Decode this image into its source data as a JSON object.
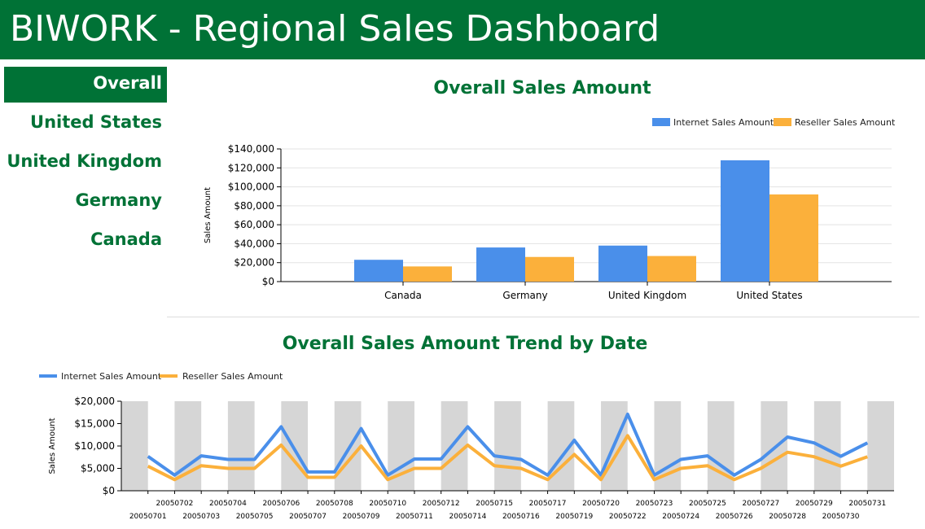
{
  "header": {
    "title": "BIWORK - Regional Sales Dashboard"
  },
  "sidebar": {
    "items": [
      {
        "label": "Overall",
        "active": true
      },
      {
        "label": "United States",
        "active": false
      },
      {
        "label": "United Kingdom",
        "active": false
      },
      {
        "label": "Germany",
        "active": false
      },
      {
        "label": "Canada",
        "active": false
      }
    ]
  },
  "colors": {
    "brand": "#007236",
    "internet": "#4a8fea",
    "reseller": "#fbb03b"
  },
  "chart_data": [
    {
      "type": "bar",
      "title": "Overall Sales Amount",
      "ylabel": "Sales Amount",
      "xlabel": "",
      "categories": [
        "Canada",
        "Germany",
        "United Kingdom",
        "United States"
      ],
      "series": [
        {
          "name": "Internet Sales Amount",
          "values": [
            23000,
            36000,
            38000,
            128000
          ]
        },
        {
          "name": "Reseller Sales Amount",
          "values": [
            16000,
            26000,
            27000,
            92000
          ]
        }
      ],
      "ylim": [
        0,
        140000
      ],
      "yticks": [
        "$0",
        "$20,000",
        "$40,000",
        "$60,000",
        "$80,000",
        "$100,000",
        "$120,000",
        "$140,000"
      ],
      "legend": "top-right",
      "grid": true
    },
    {
      "type": "line",
      "title": "Overall Sales Amount Trend by Date",
      "ylabel": "Sales Amount",
      "xlabel": "",
      "x": [
        "20050701",
        "20050702",
        "20050703",
        "20050704",
        "20050705",
        "20050706",
        "20050707",
        "20050708",
        "20050709",
        "20050710",
        "20050711",
        "20050712",
        "20050714",
        "20050715",
        "20050716",
        "20050717",
        "20050719",
        "20050720",
        "20050722",
        "20050723",
        "20050724",
        "20050725",
        "20050726",
        "20050727",
        "20050728",
        "20050729",
        "20050730",
        "20050731"
      ],
      "series": [
        {
          "name": "Internet Sales Amount",
          "values": [
            7700,
            3500,
            7800,
            7000,
            7000,
            14300,
            4200,
            4200,
            13900,
            3500,
            7100,
            7100,
            14300,
            7800,
            7000,
            3500,
            11300,
            3500,
            17100,
            3500,
            7000,
            7800,
            3500,
            7000,
            12000,
            10700,
            7700,
            10700
          ]
        },
        {
          "name": "Reseller Sales Amount",
          "values": [
            5500,
            2500,
            5600,
            5000,
            5000,
            10200,
            3000,
            3000,
            10000,
            2500,
            5000,
            5000,
            10200,
            5600,
            5000,
            2500,
            8100,
            2500,
            12300,
            2500,
            5000,
            5600,
            2500,
            5000,
            8600,
            7600,
            5500,
            7600
          ]
        }
      ],
      "ylim": [
        0,
        20000
      ],
      "yticks": [
        "$0",
        "$5,000",
        "$10,000",
        "$15,000",
        "$20,000"
      ],
      "legend": "top-left",
      "grid": false
    }
  ]
}
